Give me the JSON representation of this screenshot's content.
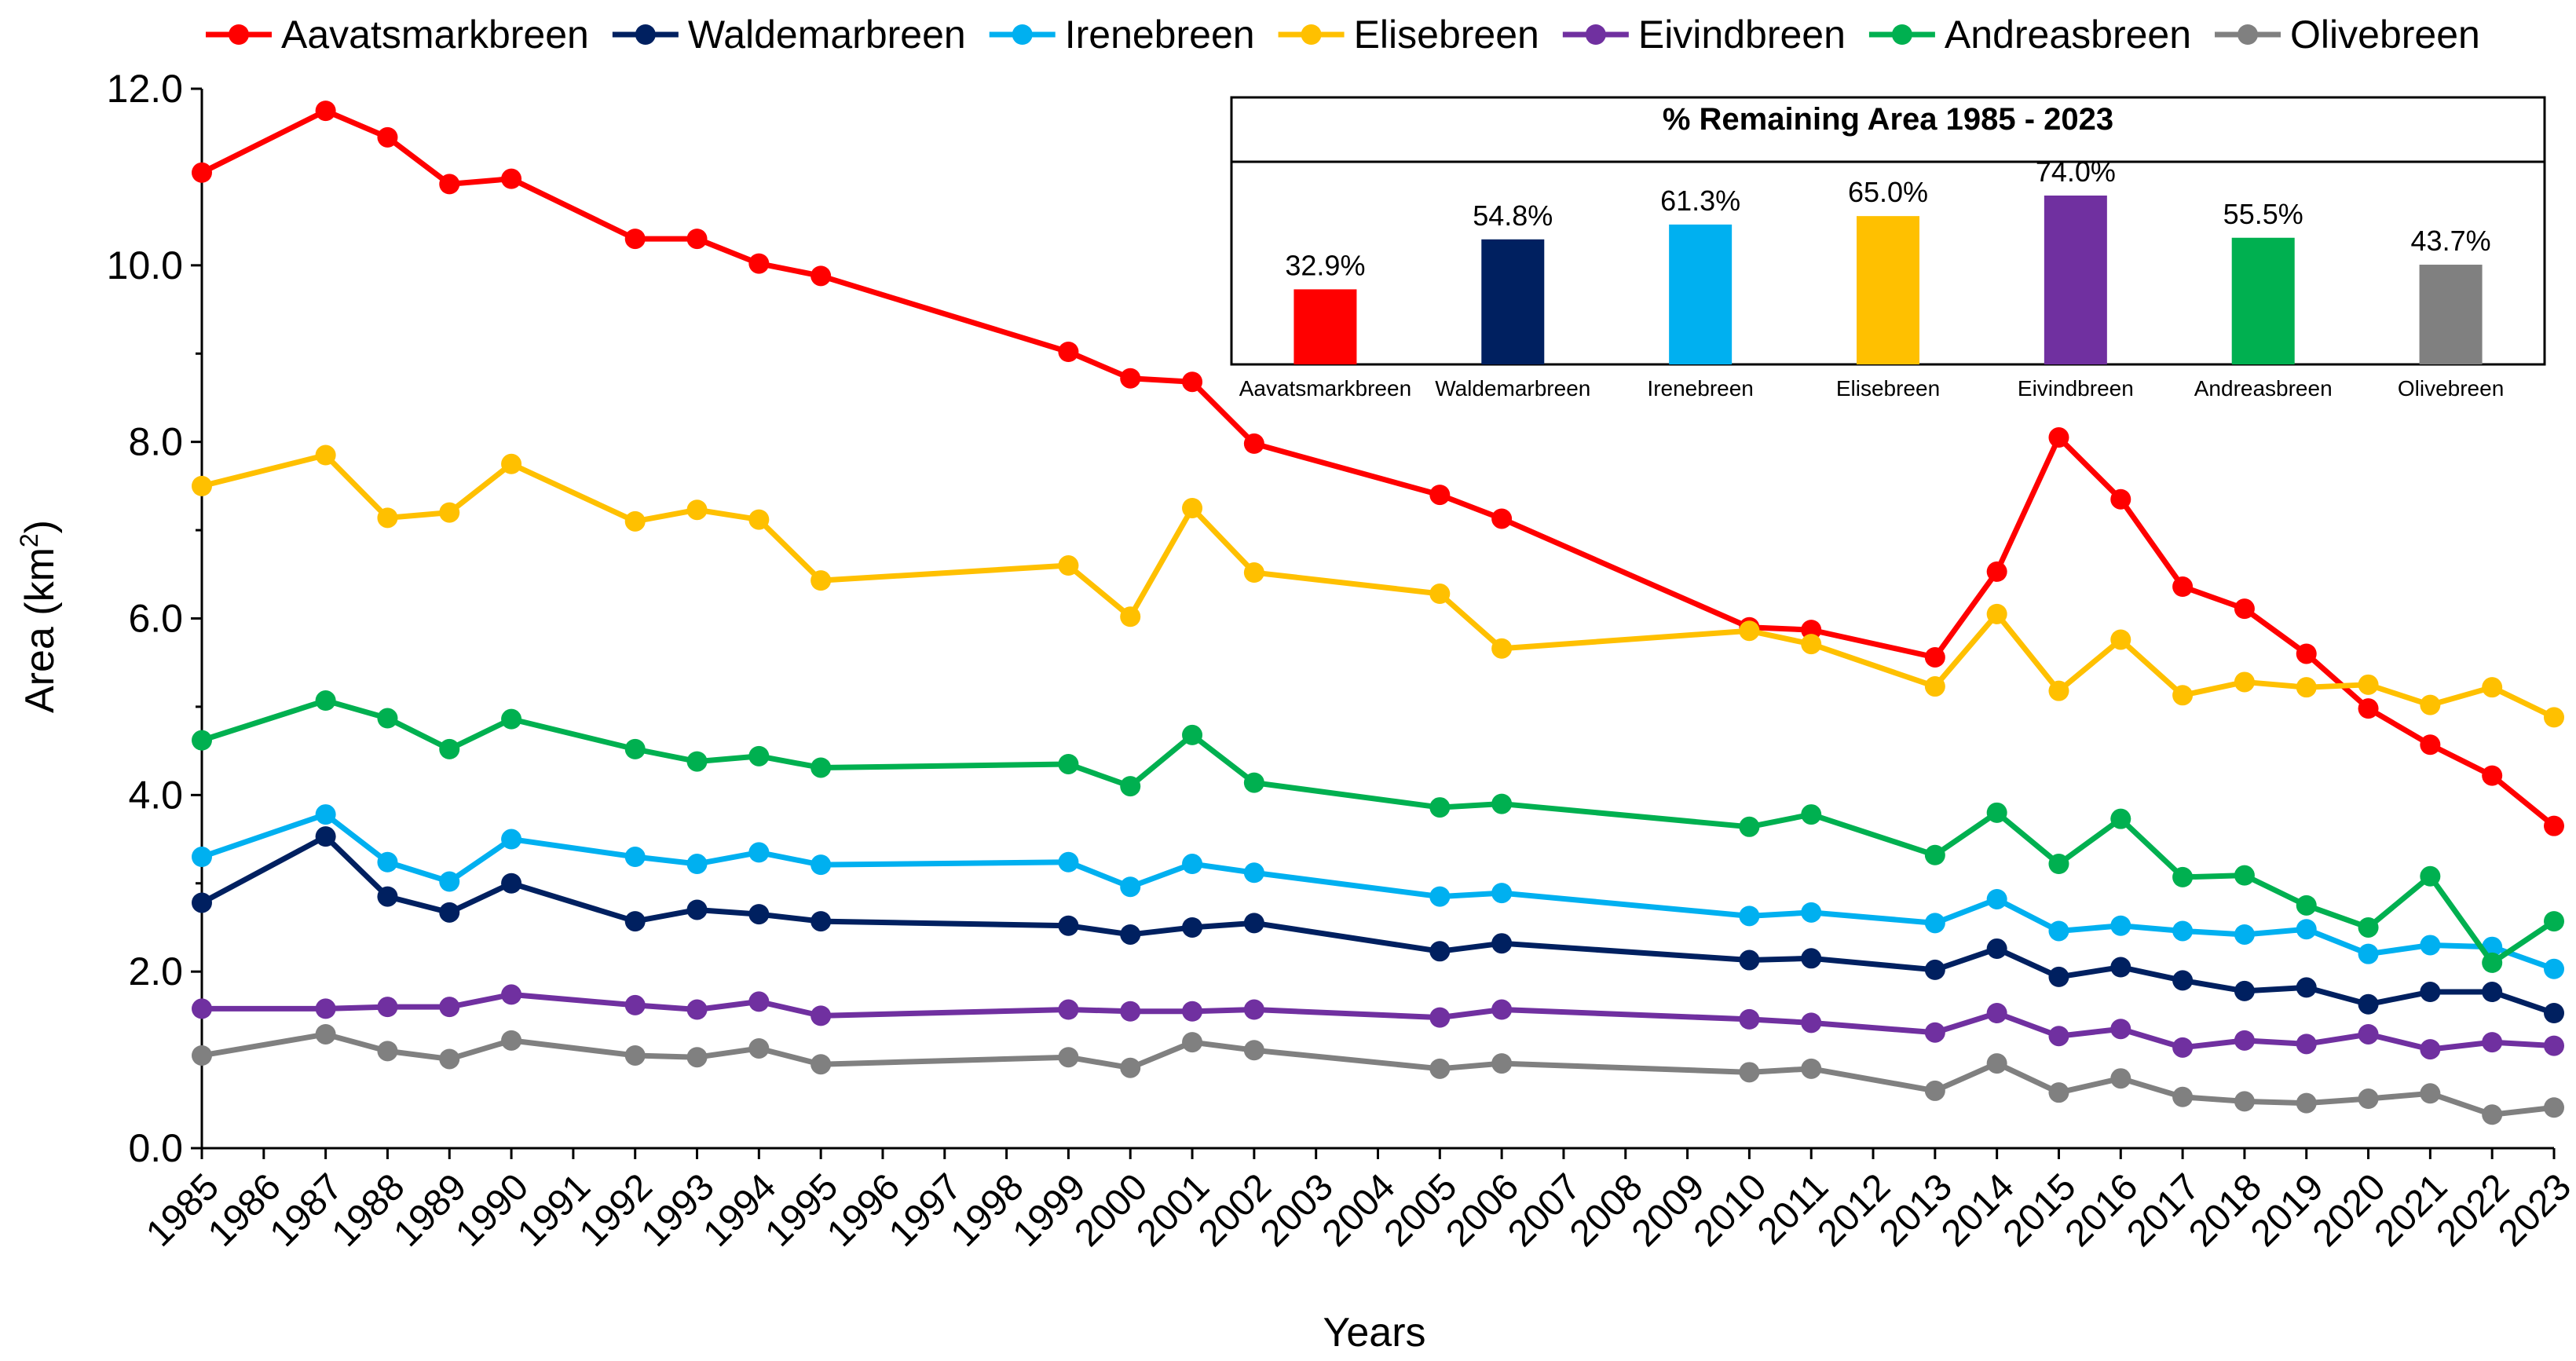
{
  "chart_data": {
    "type": "line",
    "title": "",
    "xlabel": "Years",
    "ylabel": "Area (km",
    "ylabel_sup": "2",
    "ylabel_close": ")",
    "ylim": [
      0,
      12
    ],
    "yticks": [
      "0.0",
      "2.0",
      "4.0",
      "6.0",
      "8.0",
      "10.0",
      "12.0"
    ],
    "xlim": [
      1985,
      2023
    ],
    "x": [
      1985,
      1987,
      1988,
      1989,
      1990,
      1992,
      1993,
      1994,
      1995,
      1999,
      2000,
      2001,
      2002,
      2005,
      2006,
      2010,
      2011,
      2013,
      2014,
      2015,
      2016,
      2017,
      2018,
      2019,
      2020,
      2021,
      2022,
      2023
    ],
    "legend": "top",
    "series": [
      {
        "name": "Aavatsmarkbreen",
        "color": "#ff0000",
        "values": [
          11.05,
          11.75,
          11.45,
          10.92,
          10.98,
          10.3,
          10.3,
          10.02,
          9.88,
          9.02,
          8.72,
          8.68,
          7.98,
          7.4,
          7.13,
          5.9,
          5.87,
          5.56,
          6.53,
          8.05,
          7.35,
          6.36,
          6.11,
          5.6,
          4.98,
          4.57,
          4.22,
          3.65
        ]
      },
      {
        "name": "Waldemarbreen",
        "color": "#002060",
        "values": [
          2.78,
          3.53,
          2.85,
          2.67,
          3.0,
          2.57,
          2.7,
          2.65,
          2.57,
          2.52,
          2.42,
          2.5,
          2.55,
          2.23,
          2.32,
          2.13,
          2.15,
          2.02,
          2.26,
          1.94,
          2.05,
          1.9,
          1.78,
          1.82,
          1.63,
          1.77,
          1.77,
          1.53
        ]
      },
      {
        "name": "Irenebreen",
        "color": "#00b0f0",
        "values": [
          3.3,
          3.78,
          3.24,
          3.02,
          3.5,
          3.3,
          3.22,
          3.35,
          3.21,
          3.24,
          2.96,
          3.22,
          3.12,
          2.85,
          2.89,
          2.63,
          2.67,
          2.55,
          2.82,
          2.46,
          2.52,
          2.46,
          2.42,
          2.48,
          2.2,
          2.3,
          2.28,
          2.03
        ]
      },
      {
        "name": "Elisebreen",
        "color": "#ffc000",
        "values": [
          7.5,
          7.85,
          7.14,
          7.2,
          7.75,
          7.1,
          7.23,
          7.12,
          6.43,
          6.6,
          6.02,
          7.25,
          6.52,
          6.28,
          5.66,
          5.86,
          5.71,
          5.23,
          6.05,
          5.18,
          5.76,
          5.13,
          5.28,
          5.22,
          5.25,
          5.02,
          5.22,
          4.88
        ]
      },
      {
        "name": "Eivindbreen",
        "color": "#7030a0",
        "values": [
          1.58,
          1.58,
          1.6,
          1.6,
          1.74,
          1.62,
          1.57,
          1.66,
          1.5,
          1.57,
          1.55,
          1.55,
          1.57,
          1.48,
          1.57,
          1.46,
          1.42,
          1.31,
          1.53,
          1.27,
          1.35,
          1.14,
          1.22,
          1.18,
          1.29,
          1.12,
          1.2,
          1.16
        ]
      },
      {
        "name": "Andreasbreen",
        "color": "#00b050",
        "values": [
          4.62,
          5.07,
          4.87,
          4.52,
          4.86,
          4.52,
          4.38,
          4.44,
          4.31,
          4.35,
          4.1,
          4.68,
          4.14,
          3.86,
          3.9,
          3.64,
          3.78,
          3.32,
          3.8,
          3.22,
          3.73,
          3.07,
          3.09,
          2.75,
          2.5,
          3.08,
          2.1,
          2.57
        ]
      },
      {
        "name": "Olivebreen",
        "color": "#808080",
        "values": [
          1.05,
          1.29,
          1.1,
          1.01,
          1.22,
          1.05,
          1.03,
          1.13,
          0.95,
          1.03,
          0.91,
          1.2,
          1.11,
          0.9,
          0.96,
          0.86,
          0.9,
          0.65,
          0.96,
          0.63,
          0.79,
          0.58,
          0.53,
          0.51,
          0.56,
          0.62,
          0.38,
          0.46
        ]
      }
    ],
    "inset": {
      "type": "bar",
      "title": "% Remaining  Area 1985 - 2023",
      "categories": [
        "Aavatsmarkbreen",
        "Waldemarbreen",
        "Irenebreen",
        "Elisebreen",
        "Eivindbreen",
        "Andreasbreen",
        "Olivebreen"
      ],
      "values": [
        32.9,
        54.8,
        61.3,
        65.0,
        74.0,
        55.5,
        43.7
      ],
      "labels": [
        "32.9%",
        "54.8%",
        "61.3%",
        "65.0%",
        "74.0%",
        "55.5%",
        "43.7%"
      ],
      "colors": [
        "#ff0000",
        "#002060",
        "#00b0f0",
        "#ffc000",
        "#7030a0",
        "#00b050",
        "#808080"
      ]
    }
  }
}
